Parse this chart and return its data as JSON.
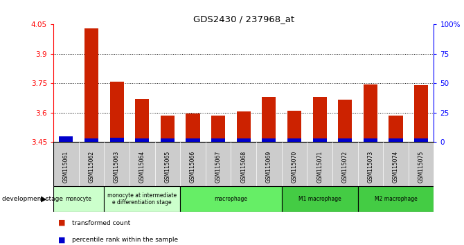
{
  "title": "GDS2430 / 237968_at",
  "samples": [
    "GSM115061",
    "GSM115062",
    "GSM115063",
    "GSM115064",
    "GSM115065",
    "GSM115066",
    "GSM115067",
    "GSM115068",
    "GSM115069",
    "GSM115070",
    "GSM115071",
    "GSM115072",
    "GSM115073",
    "GSM115074",
    "GSM115075"
  ],
  "red_values": [
    3.455,
    4.03,
    3.76,
    3.67,
    3.585,
    3.595,
    3.585,
    3.605,
    3.68,
    3.61,
    3.68,
    3.665,
    3.745,
    3.585,
    3.74
  ],
  "blue_values": [
    0.03,
    0.02,
    0.022,
    0.02,
    0.02,
    0.02,
    0.02,
    0.02,
    0.02,
    0.02,
    0.02,
    0.02,
    0.02,
    0.02,
    0.02
  ],
  "ymin": 3.45,
  "ymax": 4.05,
  "yticks": [
    3.45,
    3.6,
    3.75,
    3.9,
    4.05
  ],
  "y2ticks": [
    0,
    25,
    50,
    75,
    100
  ],
  "y2labels": [
    "0",
    "25",
    "50",
    "75",
    "100%"
  ],
  "groups": [
    {
      "label": "monocyte",
      "start": 0,
      "end": 2,
      "color": "#ccffcc"
    },
    {
      "label": "monocyte at intermediate\ne differentiation stage",
      "start": 2,
      "end": 5,
      "color": "#ccffcc"
    },
    {
      "label": "macrophage",
      "start": 5,
      "end": 9,
      "color": "#66ee66"
    },
    {
      "label": "M1 macrophage",
      "start": 9,
      "end": 12,
      "color": "#44cc44"
    },
    {
      "label": "M2 macrophage",
      "start": 12,
      "end": 15,
      "color": "#44cc44"
    }
  ],
  "bar_width": 0.55,
  "red_color": "#cc2200",
  "blue_color": "#0000cc",
  "grid_color": "#000000",
  "bg_color": "#ffffff",
  "xticklabel_bg": "#cccccc"
}
